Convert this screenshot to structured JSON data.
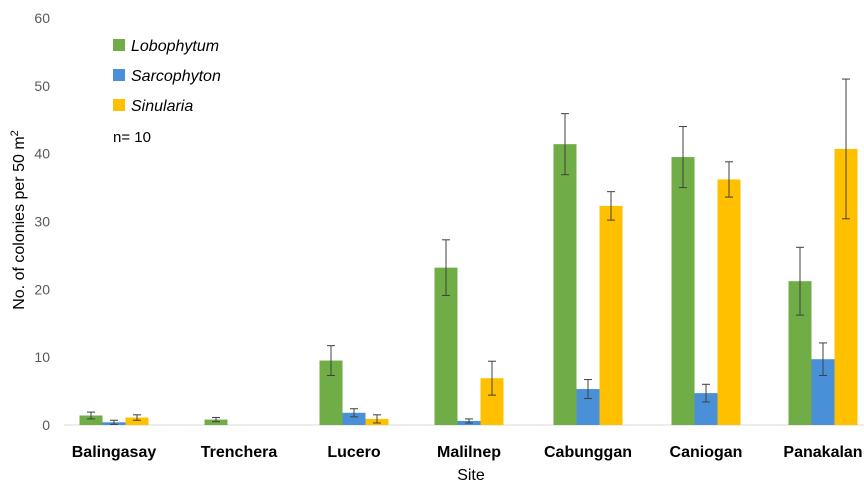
{
  "chart_data": {
    "type": "bar",
    "title": "",
    "xlabel": "Site",
    "ylabel_main": "No. of colonies per 50 m",
    "ylabel_superscript": "2",
    "ylim": [
      0,
      60
    ],
    "yticks": [
      "0",
      "10",
      "20",
      "30",
      "40",
      "50",
      "60"
    ],
    "grid": false,
    "legend_position": "top-left",
    "annotation": "n= 10",
    "categories": [
      "Balingasay",
      "Trenchera",
      "Lucero",
      "Malilnep",
      "Cabunggan",
      "Caniogan",
      "Panakalan"
    ],
    "series": [
      {
        "name": "Lobophytum",
        "color": "#70AD47",
        "values": [
          1.4,
          0.8,
          9.5,
          23.2,
          41.4,
          39.5,
          21.2
        ],
        "errors": [
          0.5,
          0.3,
          2.2,
          4.1,
          4.5,
          4.5,
          5.0
        ]
      },
      {
        "name": "Sarcophyton",
        "color": "#4A90D9",
        "values": [
          0.4,
          0.0,
          1.8,
          0.6,
          5.3,
          4.7,
          9.7
        ],
        "errors": [
          0.3,
          0.0,
          0.6,
          0.3,
          1.4,
          1.3,
          2.4
        ]
      },
      {
        "name": "Sinularia",
        "color": "#FFC000",
        "values": [
          1.1,
          0.0,
          0.9,
          6.9,
          32.3,
          36.2,
          40.7
        ],
        "errors": [
          0.4,
          0.0,
          0.6,
          2.5,
          2.1,
          2.6,
          10.3
        ]
      }
    ]
  }
}
